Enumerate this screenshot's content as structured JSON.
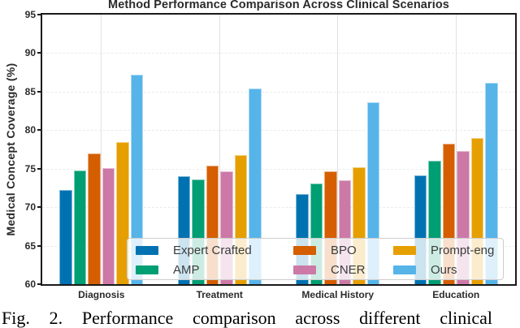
{
  "figure": {
    "caption": "Fig. 2. Performance comparison across different clinical"
  },
  "chart_data": {
    "type": "bar",
    "title": "Method Performance Comparison Across Clinical Scenarios",
    "xlabel": "",
    "ylabel": "Medical Concept Coverage (%)",
    "categories": [
      "Diagnosis",
      "Treatment",
      "Medical History",
      "Education"
    ],
    "series": [
      {
        "name": "Expert Crafted",
        "color": "#0072B2",
        "values": [
          72.2,
          74.0,
          71.7,
          74.1
        ]
      },
      {
        "name": "AMP",
        "color": "#009E73",
        "values": [
          74.8,
          73.6,
          73.1,
          76.0
        ]
      },
      {
        "name": "BPO",
        "color": "#D55E00",
        "values": [
          77.0,
          75.4,
          74.7,
          78.2
        ]
      },
      {
        "name": "CNER",
        "color": "#CC79A7",
        "values": [
          75.1,
          74.7,
          73.5,
          77.3
        ]
      },
      {
        "name": "Prompt-eng",
        "color": "#E69F00",
        "values": [
          78.5,
          76.8,
          75.2,
          79.0
        ]
      },
      {
        "name": "Ours",
        "color": "#56B4E9",
        "values": [
          87.2,
          85.4,
          83.6,
          86.1
        ]
      }
    ],
    "ylim": [
      60,
      95
    ],
    "yticks": [
      60,
      65,
      70,
      75,
      80,
      85,
      90,
      95
    ],
    "grid": true,
    "legend_position": "lower-center-inside",
    "legend_rows": 2,
    "legend_columns": 3
  }
}
